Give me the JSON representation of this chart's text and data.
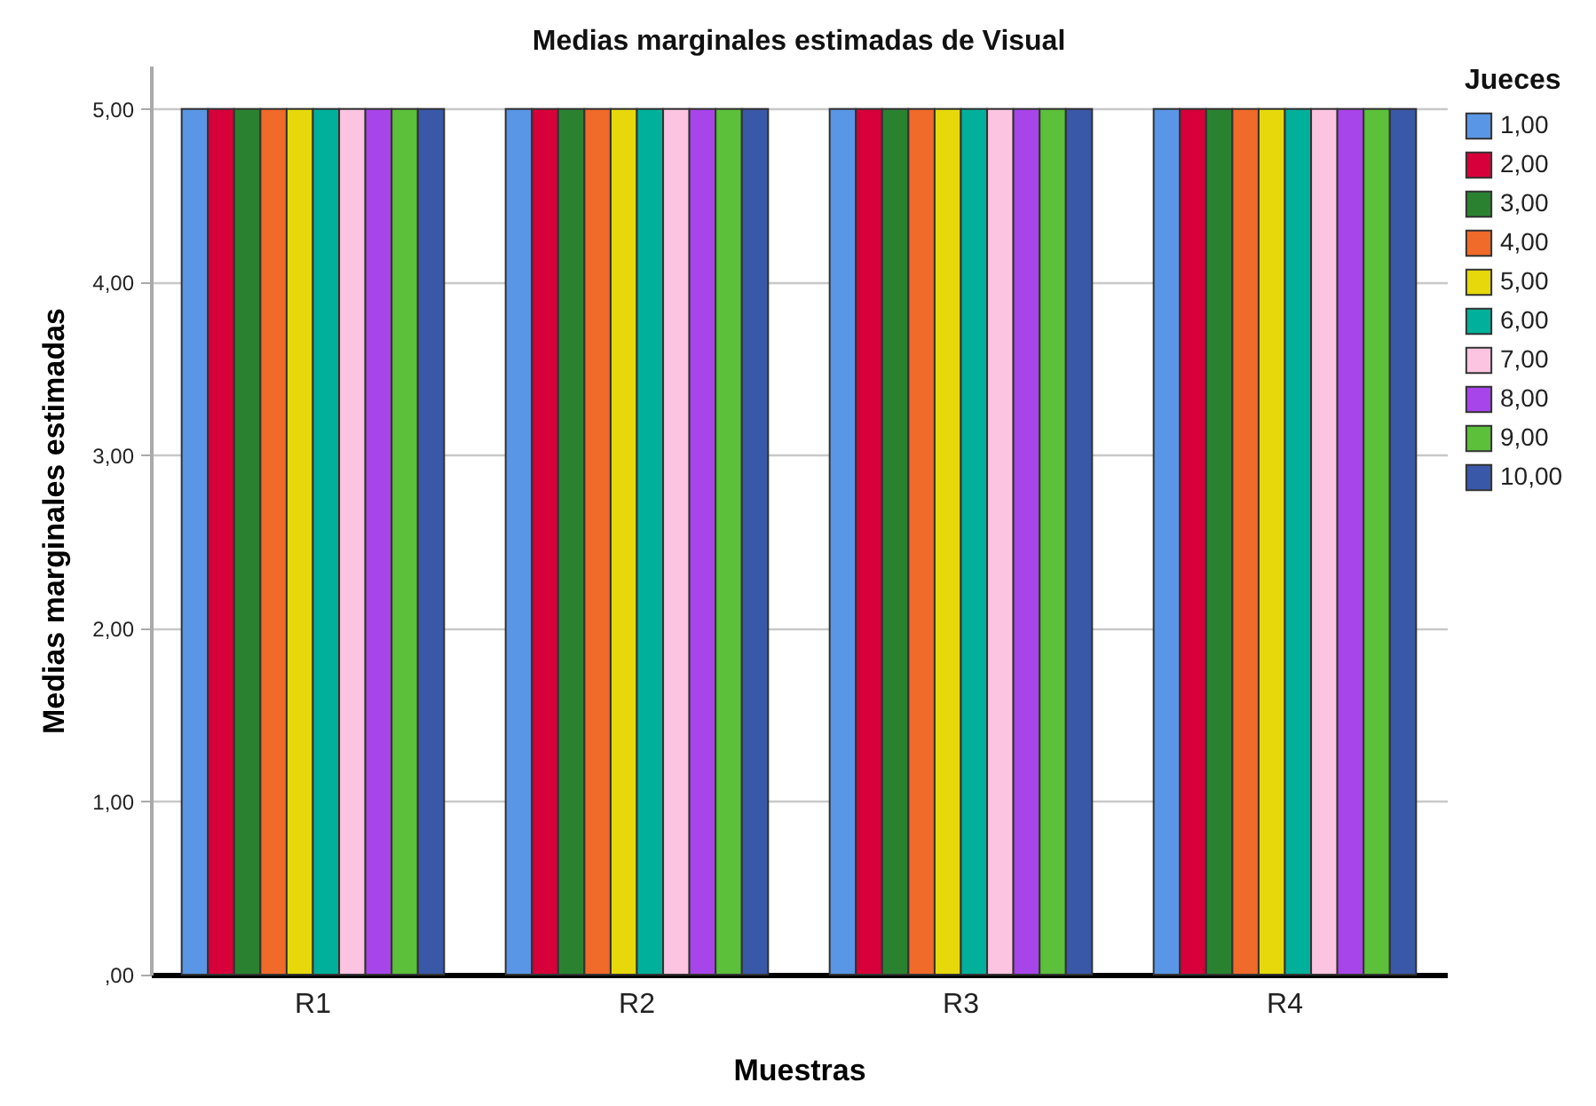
{
  "chart_data": {
    "type": "bar",
    "title": "Medias marginales estimadas de Visual",
    "xlabel": "Muestras",
    "ylabel": "Medias marginales estimadas",
    "legend_title": "Jueces",
    "categories": [
      "R1",
      "R2",
      "R3",
      "R4"
    ],
    "series": [
      {
        "name": "1,00",
        "color": "#5a96e6",
        "values": [
          5,
          5,
          5,
          5
        ]
      },
      {
        "name": "2,00",
        "color": "#d7003a",
        "values": [
          5,
          5,
          5,
          5
        ]
      },
      {
        "name": "3,00",
        "color": "#2a8230",
        "values": [
          5,
          5,
          5,
          5
        ]
      },
      {
        "name": "4,00",
        "color": "#f06a2a",
        "values": [
          5,
          5,
          5,
          5
        ]
      },
      {
        "name": "5,00",
        "color": "#e6d80a",
        "values": [
          5,
          5,
          5,
          5
        ]
      },
      {
        "name": "6,00",
        "color": "#00b09a",
        "values": [
          5,
          5,
          5,
          5
        ]
      },
      {
        "name": "7,00",
        "color": "#fcc4e0",
        "values": [
          5,
          5,
          5,
          5
        ]
      },
      {
        "name": "8,00",
        "color": "#a845ea",
        "values": [
          5,
          5,
          5,
          5
        ]
      },
      {
        "name": "9,00",
        "color": "#5cc03a",
        "values": [
          5,
          5,
          5,
          5
        ]
      },
      {
        "name": "10,00",
        "color": "#3a58a8",
        "values": [
          5,
          5,
          5,
          5
        ]
      }
    ],
    "ylim": [
      0,
      5.25
    ],
    "yticks": [
      {
        "value": 0,
        "label": ",00"
      },
      {
        "value": 1,
        "label": "1,00"
      },
      {
        "value": 2,
        "label": "2,00"
      },
      {
        "value": 3,
        "label": "3,00"
      },
      {
        "value": 4,
        "label": "4,00"
      },
      {
        "value": 5,
        "label": "5,00"
      }
    ],
    "grid": "y",
    "legend": "right"
  }
}
